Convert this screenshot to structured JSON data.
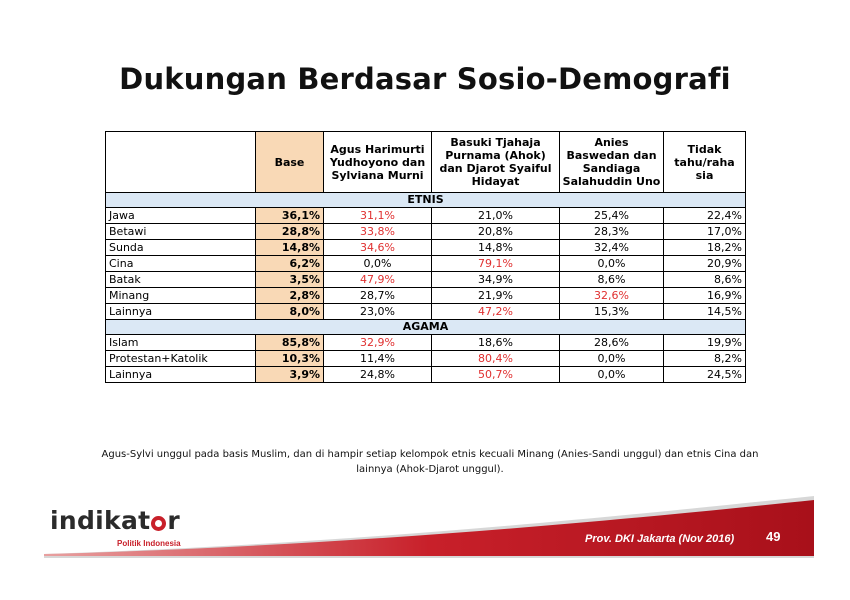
{
  "title": "Dukungan Berdasar Sosio-Demografi",
  "table": {
    "headers": {
      "blank": "",
      "base": "Base",
      "agus": "Agus Harimurti Yudhoyono dan Sylviana Murni",
      "basuki": "Basuki Tjahaja Purnama (Ahok) dan Djarot Syaiful Hidayat",
      "anies": "Anies Baswedan dan Sandiaga Salahuddin Uno",
      "tidak": "Tidak tahu/raha sia"
    },
    "sections": [
      {
        "name": "ETNIS",
        "rows": [
          {
            "label": "Jawa",
            "base": "36,1%",
            "agus": "31,1%",
            "basuki": "21,0%",
            "anies": "25,4%",
            "tidak": "22,4%"
          },
          {
            "label": "Betawi",
            "base": "28,8%",
            "agus": "33,8%",
            "basuki": "20,8%",
            "anies": "28,3%",
            "tidak": "17,0%"
          },
          {
            "label": "Sunda",
            "base": "14,8%",
            "agus": "34,6%",
            "basuki": "14,8%",
            "anies": "32,4%",
            "tidak": "18,2%"
          },
          {
            "label": "Cina",
            "base": "6,2%",
            "agus": "0,0%",
            "basuki": "79,1%",
            "anies": "0,0%",
            "tidak": "20,9%"
          },
          {
            "label": "Batak",
            "base": "3,5%",
            "agus": "47,9%",
            "basuki": "34,9%",
            "anies": "8,6%",
            "tidak": "8,6%"
          },
          {
            "label": "Minang",
            "base": "2,8%",
            "agus": "28,7%",
            "basuki": "21,9%",
            "anies": "32,6%",
            "tidak": "16,9%"
          },
          {
            "label": "Lainnya",
            "base": "8,0%",
            "agus": "23,0%",
            "basuki": "47,2%",
            "anies": "15,3%",
            "tidak": "14,5%"
          }
        ]
      },
      {
        "name": "AGAMA",
        "rows": [
          {
            "label": "Islam",
            "base": "85,8%",
            "agus": "32,9%",
            "basuki": "18,6%",
            "anies": "28,6%",
            "tidak": "19,9%"
          },
          {
            "label": "Protestan+Katolik",
            "base": "10,3%",
            "agus": "11,4%",
            "basuki": "80,4%",
            "anies": "0,0%",
            "tidak": "8,2%"
          },
          {
            "label": "Lainnya",
            "base": "3,9%",
            "agus": "24,8%",
            "basuki": "50,7%",
            "anies": "0,0%",
            "tidak": "24,5%"
          }
        ]
      }
    ],
    "highlight_color": "#e03030"
  },
  "note": "Agus-Sylvi unggul pada basis Muslim, dan di hampir setiap kelompok etnis kecuali Minang (Anies-Sandi unggul) dan etnis Cina dan lainnya (Ahok-Djarot unggul).",
  "logo": {
    "text_before": "indikat",
    "text_after": "r",
    "subtitle": "Politik Indonesia"
  },
  "footer": {
    "text": "Prov. DKI Jakarta (Nov 2016)",
    "page_number": "49",
    "accent_color": "#c8202a"
  }
}
